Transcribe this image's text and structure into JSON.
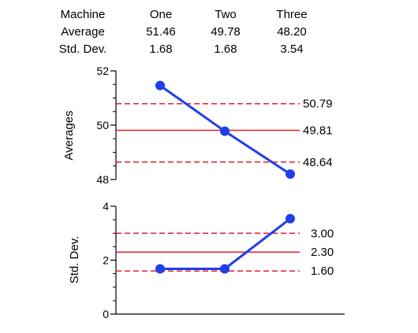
{
  "summary_table": {
    "row_headers": [
      "Machine",
      "Average",
      "Std. Dev."
    ],
    "columns": [
      {
        "machine": "One",
        "average": "51.46",
        "std_dev": "1.68"
      },
      {
        "machine": "Two",
        "average": "49.78",
        "std_dev": "1.68"
      },
      {
        "machine": "Three",
        "average": "48.20",
        "std_dev": "3.54"
      }
    ]
  },
  "chart_data": [
    {
      "type": "line",
      "title": "",
      "xlabel": "",
      "ylabel": "Averages",
      "categories": [
        "One",
        "Two",
        "Three"
      ],
      "series": [
        {
          "values": [
            51.46,
            49.78,
            48.2
          ]
        }
      ],
      "ylim": [
        48,
        52
      ],
      "yticks": [
        48,
        50,
        52
      ],
      "grid": false,
      "reference_lines": [
        {
          "value": 50.79,
          "label": "50.79",
          "style": "dashed"
        },
        {
          "value": 49.81,
          "label": "49.81",
          "style": "solid"
        },
        {
          "value": 48.64,
          "label": "48.64",
          "style": "dashed"
        }
      ]
    },
    {
      "type": "line",
      "title": "",
      "xlabel": "",
      "ylabel": "Std. Dev.",
      "categories": [
        "One",
        "Two",
        "Three"
      ],
      "series": [
        {
          "values": [
            1.68,
            1.68,
            3.54
          ]
        }
      ],
      "ylim": [
        0,
        4
      ],
      "yticks": [
        0,
        2,
        4
      ],
      "grid": false,
      "reference_lines": [
        {
          "value": 3.0,
          "label": "3.00",
          "style": "dashed"
        },
        {
          "value": 2.3,
          "label": "2.30",
          "style": "solid"
        },
        {
          "value": 1.6,
          "label": "1.60",
          "style": "dashed"
        }
      ]
    }
  ],
  "colors": {
    "series": "#1f3fe8",
    "limit_line": "#e3202a",
    "axis": "#000000"
  }
}
